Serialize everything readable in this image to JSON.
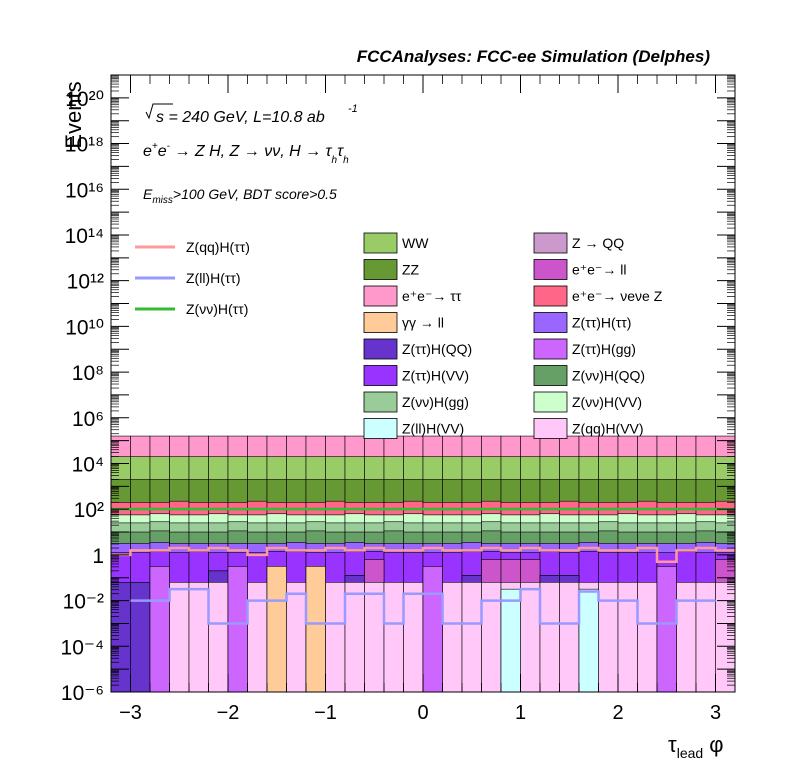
{
  "chart_data": {
    "type": "stacked-histogram",
    "title": "FCCAnalyses: FCC-ee Simulation (Delphes)",
    "annotations": {
      "energy": "√s = 240 GeV, L=10.8 ab",
      "energy_sup": "-1",
      "process": "e⁺e⁻ → Z H, Z → νν, H → τhτh",
      "selection": "Emiss>100 GeV, BDT score>0.5"
    },
    "xlabel": "τlead φ",
    "ylabel": "Events",
    "xlim": [
      -3.2,
      3.2
    ],
    "ylim": [
      1e-06,
      1e+21
    ],
    "log_y": true,
    "xticks": [
      -3,
      -2,
      -1,
      0,
      1,
      2,
      3
    ],
    "yticks": [
      {
        "exp": -6,
        "label": "10⁻⁶"
      },
      {
        "exp": -4,
        "label": "10⁻⁴"
      },
      {
        "exp": -2,
        "label": "10⁻²"
      },
      {
        "exp": 0,
        "label": "1"
      },
      {
        "exp": 2,
        "label": "10²"
      },
      {
        "exp": 4,
        "label": "10⁴"
      },
      {
        "exp": 6,
        "label": "10⁶"
      },
      {
        "exp": 8,
        "label": "10⁸"
      },
      {
        "exp": 10,
        "label": "10¹⁰"
      },
      {
        "exp": 12,
        "label": "10¹²"
      },
      {
        "exp": 14,
        "label": "10¹⁴"
      },
      {
        "exp": 16,
        "label": "10¹⁶"
      },
      {
        "exp": 18,
        "label": "10¹⁸"
      },
      {
        "exp": 20,
        "label": "10²⁰"
      }
    ],
    "bins": 32,
    "stack_layers": [
      {
        "name": "Z(qq)H(VV)",
        "color": "#ffc8f8",
        "level": [
          -6,
          -6,
          -1.2,
          -1.2,
          -1.2,
          -1.2,
          -1.2,
          -1.2,
          -1.2,
          -1.2,
          -1.2,
          -1.2,
          -1.2,
          -1.2,
          -1.2,
          -1.2,
          -1.2,
          -1.2,
          -1.2,
          -1.2,
          -1.2,
          -1.2,
          -1.2,
          -1.2,
          -1.2,
          -1.2,
          -1.2,
          -1.2,
          -1.2,
          -1.2,
          -1.2,
          -1.2
        ]
      },
      {
        "name": "Z(ττ)H(QQ)",
        "color": "#6633cc",
        "level": [
          -1.2,
          -1.2,
          -1.2,
          -1.2,
          -1.2,
          -0.7,
          -1.2,
          -1.2,
          -1.2,
          -1.2,
          -1.2,
          -1.2,
          -0.9,
          -1.2,
          -1.2,
          -1.2,
          -1.2,
          -1.2,
          -0.9,
          -1.2,
          -1.2,
          -1.2,
          -0.9,
          -0.9,
          -1.2,
          -1.2,
          -1.2,
          -1.2,
          -1.2,
          -1.2,
          -1.2,
          -1.2
        ]
      },
      {
        "name": "e⁺e⁻→ ll",
        "color": "#cc55cc",
        "level": [
          -1.2,
          -1.2,
          -1.2,
          -1.2,
          -1.2,
          -0.7,
          -1.2,
          -1.2,
          -1.2,
          -1.2,
          -1.2,
          -1.2,
          -0.9,
          -0.2,
          -1.2,
          -1.2,
          -1.2,
          -1.2,
          -0.9,
          -0.2,
          -0.2,
          -0.2,
          -0.9,
          -0.9,
          -1.2,
          -1.2,
          -1.2,
          -1.2,
          -1.2,
          -1.2,
          -1.2,
          -0.2
        ]
      },
      {
        "name": "Z(ττ)H(VV)",
        "color": "#9933ff",
        "level": [
          0.1,
          0.1,
          0.15,
          0.1,
          0.15,
          0.1,
          0.1,
          0.1,
          0.15,
          0.15,
          0.1,
          0.1,
          0.15,
          0.15,
          0.1,
          0.1,
          0.1,
          0.1,
          0.15,
          0.15,
          0.1,
          0.1,
          0.15,
          0.1,
          0.15,
          0.1,
          0.1,
          0.1,
          0.1,
          0.15,
          0.1,
          0.1
        ]
      },
      {
        "name": "Z(ττ)H(ττ)",
        "color": "#9966ff",
        "level": [
          0.5,
          0.5,
          0.55,
          0.5,
          0.5,
          0.5,
          0.5,
          0.5,
          0.5,
          0.55,
          0.5,
          0.5,
          0.55,
          0.5,
          0.5,
          0.5,
          0.5,
          0.5,
          0.55,
          0.5,
          0.5,
          0.5,
          0.5,
          0.5,
          0.55,
          0.5,
          0.5,
          0.5,
          0.5,
          0.5,
          0.55,
          0.5
        ]
      },
      {
        "name": "Z(νν)H(QQ)",
        "color": "#66a066",
        "level": [
          1.0,
          1.0,
          1.05,
          1.0,
          1.0,
          1.0,
          1.05,
          1.0,
          1.0,
          1.0,
          1.05,
          1.0,
          1.0,
          1.0,
          1.05,
          1.0,
          1.0,
          1.0,
          1.0,
          1.05,
          1.0,
          1.0,
          1.0,
          1.0,
          1.0,
          1.05,
          1.0,
          1.0,
          1.0,
          1.0,
          1.05,
          1.0
        ]
      },
      {
        "name": "Z(νν)H(gg)",
        "color": "#99cc99",
        "level": [
          1.4,
          1.4,
          1.45,
          1.4,
          1.4,
          1.4,
          1.45,
          1.4,
          1.4,
          1.4,
          1.45,
          1.4,
          1.4,
          1.4,
          1.45,
          1.4,
          1.4,
          1.4,
          1.4,
          1.45,
          1.4,
          1.4,
          1.4,
          1.4,
          1.4,
          1.45,
          1.4,
          1.4,
          1.4,
          1.4,
          1.45,
          1.4
        ]
      },
      {
        "name": "Z(νν)H(VV)",
        "color": "#ccffcc",
        "level": [
          1.75,
          1.75,
          1.8,
          1.75,
          1.75,
          1.8,
          1.75,
          1.75,
          1.8,
          1.75,
          1.75,
          1.75,
          1.8,
          1.75,
          1.75,
          1.8,
          1.75,
          1.75,
          1.75,
          1.8,
          1.75,
          1.75,
          1.8,
          1.75,
          1.75,
          1.75,
          1.8,
          1.75,
          1.75,
          1.8,
          1.75,
          1.75
        ]
      },
      {
        "name": "e⁺e⁻→ νeνe Z",
        "color": "#ff6688",
        "level": [
          2.3,
          2.3,
          2.3,
          2.35,
          2.3,
          2.3,
          2.3,
          2.35,
          2.3,
          2.3,
          2.3,
          2.35,
          2.3,
          2.3,
          2.3,
          2.35,
          2.3,
          2.3,
          2.3,
          2.35,
          2.3,
          2.3,
          2.3,
          2.35,
          2.3,
          2.3,
          2.3,
          2.35,
          2.3,
          2.3,
          2.3,
          2.35
        ]
      },
      {
        "name": "ZZ",
        "color": "#669933",
        "level": [
          3.3,
          3.3,
          3.3,
          3.3,
          3.3,
          3.3,
          3.3,
          3.3,
          3.3,
          3.3,
          3.3,
          3.3,
          3.3,
          3.3,
          3.3,
          3.3,
          3.3,
          3.3,
          3.3,
          3.3,
          3.3,
          3.3,
          3.3,
          3.3,
          3.3,
          3.3,
          3.3,
          3.3,
          3.3,
          3.3,
          3.3,
          3.3
        ]
      },
      {
        "name": "WW",
        "color": "#99cc66",
        "level": [
          4.3,
          4.3,
          4.3,
          4.3,
          4.3,
          4.3,
          4.3,
          4.3,
          4.3,
          4.3,
          4.3,
          4.3,
          4.3,
          4.3,
          4.3,
          4.3,
          4.3,
          4.3,
          4.3,
          4.3,
          4.3,
          4.3,
          4.3,
          4.3,
          4.3,
          4.3,
          4.3,
          4.3,
          4.3,
          4.3,
          4.3,
          4.3
        ]
      },
      {
        "name": "e⁺e⁻→ ττ",
        "color": "#ff99cc",
        "level": [
          5.2,
          5.2,
          5.2,
          5.2,
          5.2,
          5.2,
          5.2,
          5.2,
          5.2,
          5.2,
          5.2,
          5.2,
          5.2,
          5.2,
          5.2,
          5.2,
          5.2,
          5.2,
          5.2,
          5.2,
          5.2,
          5.2,
          5.2,
          5.2,
          5.2,
          5.2,
          5.2,
          5.2,
          5.2,
          5.2,
          5.2,
          5.2
        ]
      }
    ],
    "overlay_bars": [
      {
        "name": "Z(ττ)H(gg)",
        "color": "#cc66ff",
        "bins": {
          "2": -0.5,
          "6": -0.5,
          "10": -0.5,
          "16": -0.5,
          "28": -0.5
        }
      },
      {
        "name": "γγ → ll",
        "color": "#ffcc99",
        "bins": {
          "8": -0.5,
          "10": -0.5
        }
      },
      {
        "name": "Z(ll)H(VV)",
        "color": "#ccffff",
        "bins": {
          "20": -1.5,
          "24": -1.5
        }
      }
    ],
    "signal_lines": [
      {
        "name": "Z(qq)H(ττ)",
        "color": "#ff9999",
        "log10_values": [
          0.0,
          0.2,
          0.2,
          0.3,
          0.2,
          0.3,
          0.2,
          0.0,
          0.3,
          0.2,
          0.2,
          0.3,
          0.2,
          0.3,
          0.2,
          0.2,
          0.3,
          0.2,
          0.2,
          0.3,
          0.2,
          0.3,
          0.2,
          0.2,
          0.3,
          0.2,
          0.2,
          0.3,
          -0.3,
          0.2,
          0.3,
          0.2
        ]
      },
      {
        "name": "Z(ll)H(ττ)",
        "color": "#9999ff",
        "log10_values": [
          null,
          -2.0,
          -2.0,
          -1.5,
          -1.5,
          -3.0,
          -3.0,
          -2.0,
          -2.0,
          -1.7,
          -3.0,
          -3.0,
          -1.7,
          -1.7,
          -3.0,
          -1.7,
          -1.7,
          -3.0,
          -3.0,
          -2.0,
          -2.0,
          -1.5,
          -3.0,
          -3.0,
          -1.6,
          -2.0,
          -2.0,
          -3.0,
          -3.0,
          -2.0,
          -2.0,
          null
        ]
      },
      {
        "name": "Z(νν)H(ττ)",
        "color": "#33bb33",
        "log10_values": [
          2.0,
          2.0,
          2.0,
          2.0,
          2.0,
          2.0,
          2.0,
          2.0,
          2.0,
          2.0,
          2.0,
          2.0,
          2.0,
          2.0,
          2.0,
          2.0,
          2.0,
          2.0,
          2.0,
          2.0,
          2.0,
          2.0,
          2.0,
          2.0,
          2.0,
          2.0,
          2.0,
          2.0,
          2.0,
          2.0,
          2.0,
          2.0
        ]
      }
    ],
    "legend_lines": [
      "Z(qq)H(ττ)",
      "Z(ll)H(ττ)",
      "Z(νν)H(ττ)"
    ],
    "legend_boxes": [
      {
        "label": "WW",
        "color": "#99cc66"
      },
      {
        "label": "Z → QQ",
        "color": "#cc99cc"
      },
      {
        "label": "ZZ",
        "color": "#669933"
      },
      {
        "label": "e⁺e⁻→ ll",
        "color": "#cc55cc"
      },
      {
        "label": "e⁺e⁻→ ττ",
        "color": "#ff99cc"
      },
      {
        "label": "e⁺e⁻→ νeνe Z",
        "color": "#ff6688"
      },
      {
        "label": "γγ → ll",
        "color": "#ffcc99"
      },
      {
        "label": "Z(ττ)H(ττ)",
        "color": "#9966ff"
      },
      {
        "label": "Z(ττ)H(QQ)",
        "color": "#6633cc"
      },
      {
        "label": "Z(ττ)H(gg)",
        "color": "#cc66ff"
      },
      {
        "label": "Z(ττ)H(VV)",
        "color": "#9933ff"
      },
      {
        "label": "Z(νν)H(QQ)",
        "color": "#66a066"
      },
      {
        "label": "Z(νν)H(gg)",
        "color": "#99cc99"
      },
      {
        "label": "Z(νν)H(VV)",
        "color": "#ccffcc"
      },
      {
        "label": "Z(ll)H(VV)",
        "color": "#ccffff"
      },
      {
        "label": "Z(qq)H(VV)",
        "color": "#ffc8f8"
      }
    ]
  }
}
